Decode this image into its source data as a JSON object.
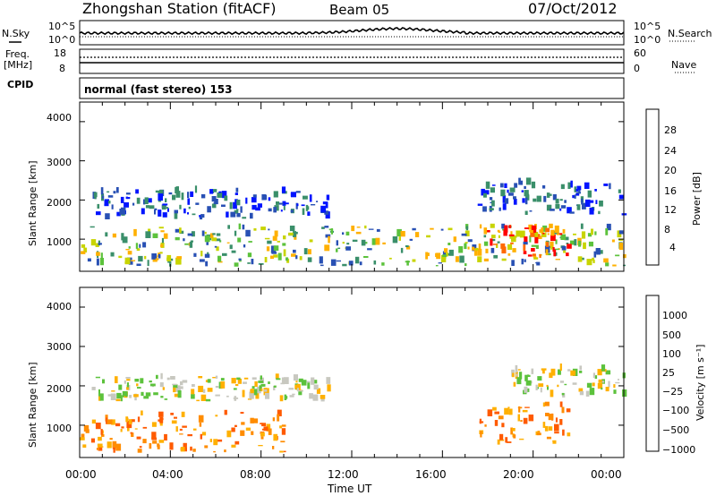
{
  "header": {
    "station": "Zhongshan Station (fitACF)",
    "beam": "Beam 05",
    "date": "07/Oct/2012"
  },
  "panels": {
    "nsky": {
      "left_label": "N.Sky",
      "left_ticks": [
        "10^5",
        "10^0"
      ],
      "right_ticks": [
        "10^5",
        "10^0"
      ],
      "right_label": "N.Search"
    },
    "freq": {
      "left_label_1": "Freq.",
      "left_label_2": "[MHz]",
      "left_ticks": [
        "18",
        "8"
      ],
      "right_ticks": [
        "60",
        "0"
      ],
      "right_label": "Nave"
    },
    "cpid": {
      "label": "CPID",
      "mode": "normal (fast stereo) 153"
    }
  },
  "chart_data": [
    {
      "type": "heatmap",
      "title": "",
      "ylabel": "Slant Range [km]",
      "xlabel": "",
      "y_ticks": [
        "4000",
        "3000",
        "2000",
        "1000"
      ],
      "ylim": [
        180,
        4500
      ],
      "colorbar": {
        "label": "Power [dB]",
        "ticks": [
          "28",
          "24",
          "20",
          "16",
          "12",
          "8",
          "4"
        ],
        "colors": [
          "#ff0000",
          "#ff6a00",
          "#ffb000",
          "#c8d400",
          "#5cc23c",
          "#3a8f6a",
          "#2850b4",
          "#0014ff"
        ]
      },
      "bands": [
        {
          "t_start": 0.0,
          "t_end": 24.0,
          "r_low": 300,
          "r_high": 1300,
          "level": "mid"
        },
        {
          "t_start": 0.5,
          "t_end": 11.0,
          "r_low": 1500,
          "r_high": 2200,
          "level": "low"
        },
        {
          "t_start": 17.5,
          "t_end": 24.0,
          "r_low": 1600,
          "r_high": 2400,
          "level": "low"
        },
        {
          "t_start": 17.8,
          "t_end": 21.5,
          "r_low": 500,
          "r_high": 1300,
          "level": "high"
        }
      ]
    },
    {
      "type": "heatmap",
      "title": "",
      "ylabel": "Slant Range [km]",
      "xlabel": "Time UT",
      "y_ticks": [
        "4000",
        "3000",
        "2000",
        "1000"
      ],
      "x_ticks": [
        "00:00",
        "04:00",
        "08:00",
        "12:00",
        "16:00",
        "20:00",
        "00:00"
      ],
      "ylim": [
        180,
        4500
      ],
      "colorbar": {
        "label": "Velocity [m s⁻¹]",
        "ticks": [
          "1000",
          "500",
          "100",
          "25",
          "−25",
          "−100",
          "−500",
          "−1000"
        ],
        "colors": [
          "#1e3cc8",
          "#2d6eb4",
          "#3a8f6a",
          "#5cc23c",
          "#c8c8c0",
          "#ffb000",
          "#ff8c00",
          "#ff5a00",
          "#ff0000"
        ]
      },
      "bands": [
        {
          "t_start": 0.0,
          "t_end": 9.0,
          "r_low": 300,
          "r_high": 1300,
          "level": "neg"
        },
        {
          "t_start": 0.5,
          "t_end": 11.0,
          "r_low": 1600,
          "r_high": 2200,
          "level": "zero"
        },
        {
          "t_start": 17.5,
          "t_end": 21.5,
          "r_low": 500,
          "r_high": 1500,
          "level": "neg"
        },
        {
          "t_start": 19.0,
          "t_end": 24.0,
          "r_low": 1700,
          "r_high": 2400,
          "level": "zero"
        }
      ]
    }
  ]
}
